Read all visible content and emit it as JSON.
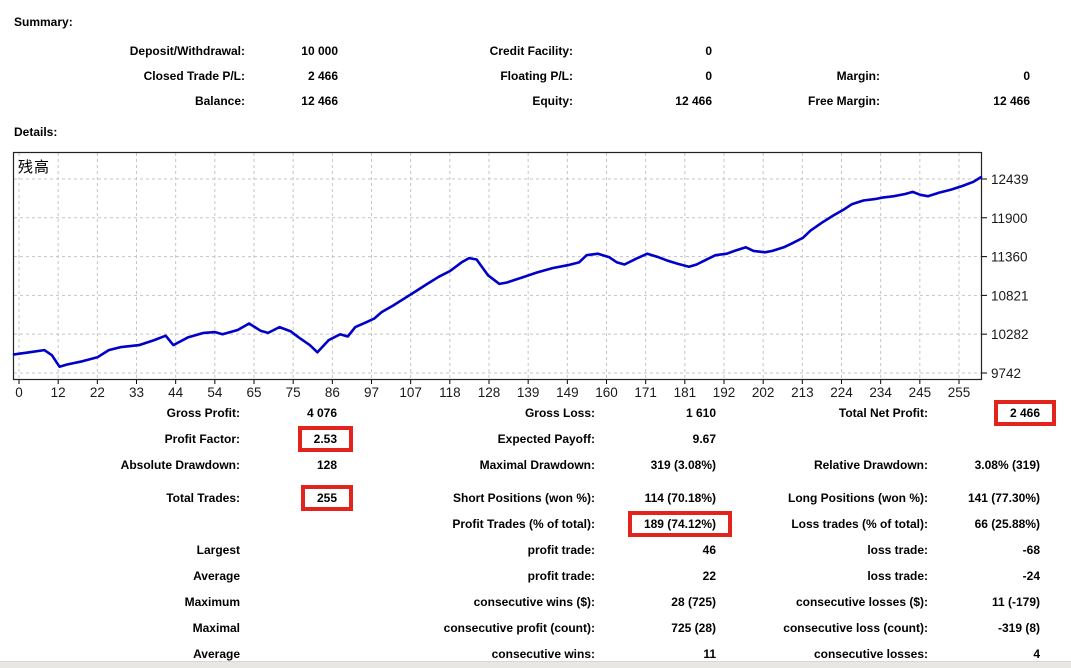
{
  "colors": {
    "highlight_red": "#e3241d",
    "balance_line_blue": "#0000c8",
    "grid_gray": "#c4c4c4",
    "axis_text": "#1a1a1a"
  },
  "summary": {
    "heading": "Summary:",
    "rows": [
      [
        "Deposit/Withdrawal:",
        "10 000",
        "Credit Facility:",
        "0",
        "",
        ""
      ],
      [
        "Closed Trade P/L:",
        "2 466",
        "Floating P/L:",
        "0",
        "Margin:",
        "0"
      ],
      [
        "Balance:",
        "12 466",
        "Equity:",
        "12 466",
        "Free Margin:",
        "12 466"
      ]
    ]
  },
  "details": {
    "heading": "Details:",
    "rows": [
      [
        "Gross Profit:",
        "4 076",
        "Gross Loss:",
        "1 610",
        "Total Net Profit:",
        {
          "text": "2 466",
          "highlighted": true
        }
      ],
      [
        "Profit Factor:",
        {
          "text": "2.53",
          "highlighted": true
        },
        "Expected Payoff:",
        "9.67",
        "",
        ""
      ],
      [
        "Absolute Drawdown:",
        "128",
        "Maximal Drawdown:",
        "319 (3.08%)",
        "Relative Drawdown:",
        "3.08% (319)"
      ],
      {
        "spacer": true
      },
      [
        "Total Trades:",
        {
          "text": "255",
          "highlighted": true
        },
        "Short Positions (won %):",
        "114 (70.18%)",
        "Long Positions (won %):",
        "141 (77.30%)"
      ],
      [
        "",
        "",
        "Profit Trades (% of total):",
        {
          "text": "189 (74.12%)",
          "highlighted": true
        },
        "Loss trades (% of total):",
        "66 (25.88%)"
      ],
      [
        "Largest",
        "",
        "profit trade:",
        "46",
        "loss trade:",
        "-68"
      ],
      [
        "Average",
        "",
        "profit trade:",
        "22",
        "loss trade:",
        "-24"
      ],
      [
        "Maximum",
        "",
        "consecutive wins ($):",
        "28 (725)",
        "consecutive losses ($):",
        "11 (-179)"
      ],
      [
        "Maximal",
        "",
        "consecutive profit (count):",
        "725 (28)",
        "consecutive loss (count):",
        "-319 (8)"
      ],
      [
        "Average",
        "",
        "consecutive wins:",
        "11",
        "consecutive losses:",
        "4"
      ]
    ]
  },
  "chart_data": {
    "type": "line",
    "title": "残高",
    "xlabel": "",
    "ylabel": "",
    "xlim": [
      0,
      255
    ],
    "ylim": [
      9670,
      12540
    ],
    "grid": true,
    "legend_position": "none",
    "xticks": [
      0,
      12,
      22,
      33,
      44,
      54,
      65,
      75,
      86,
      97,
      107,
      118,
      128,
      139,
      149,
      160,
      171,
      181,
      192,
      202,
      213,
      224,
      234,
      245,
      255
    ],
    "yticks": [
      9742,
      10282,
      10821,
      11360,
      11900,
      12439
    ],
    "series": [
      {
        "name": "残高 (Balance)",
        "color": "#0000c8",
        "points": [
          [
            0,
            10000
          ],
          [
            4,
            10030
          ],
          [
            8,
            10060
          ],
          [
            10,
            9990
          ],
          [
            12,
            9830
          ],
          [
            14,
            9860
          ],
          [
            18,
            9905
          ],
          [
            22,
            9960
          ],
          [
            25,
            10060
          ],
          [
            28,
            10100
          ],
          [
            33,
            10130
          ],
          [
            37,
            10200
          ],
          [
            40,
            10260
          ],
          [
            42,
            10130
          ],
          [
            46,
            10240
          ],
          [
            50,
            10300
          ],
          [
            53,
            10310
          ],
          [
            55,
            10280
          ],
          [
            59,
            10340
          ],
          [
            62,
            10430
          ],
          [
            65,
            10330
          ],
          [
            67,
            10300
          ],
          [
            70,
            10380
          ],
          [
            73,
            10320
          ],
          [
            75,
            10240
          ],
          [
            78,
            10130
          ],
          [
            80,
            10030
          ],
          [
            83,
            10200
          ],
          [
            86,
            10280
          ],
          [
            88,
            10250
          ],
          [
            90,
            10380
          ],
          [
            93,
            10450
          ],
          [
            95,
            10500
          ],
          [
            97,
            10590
          ],
          [
            100,
            10680
          ],
          [
            103,
            10780
          ],
          [
            106,
            10880
          ],
          [
            109,
            10980
          ],
          [
            112,
            11080
          ],
          [
            115,
            11160
          ],
          [
            118,
            11280
          ],
          [
            120,
            11340
          ],
          [
            122,
            11320
          ],
          [
            125,
            11100
          ],
          [
            128,
            10980
          ],
          [
            130,
            11000
          ],
          [
            134,
            11070
          ],
          [
            138,
            11140
          ],
          [
            142,
            11200
          ],
          [
            146,
            11240
          ],
          [
            149,
            11280
          ],
          [
            151,
            11380
          ],
          [
            154,
            11400
          ],
          [
            157,
            11350
          ],
          [
            159,
            11280
          ],
          [
            161,
            11250
          ],
          [
            164,
            11330
          ],
          [
            167,
            11400
          ],
          [
            170,
            11350
          ],
          [
            172,
            11310
          ],
          [
            175,
            11260
          ],
          [
            178,
            11220
          ],
          [
            180,
            11250
          ],
          [
            183,
            11330
          ],
          [
            185,
            11380
          ],
          [
            188,
            11400
          ],
          [
            190,
            11440
          ],
          [
            193,
            11490
          ],
          [
            195,
            11440
          ],
          [
            198,
            11420
          ],
          [
            200,
            11440
          ],
          [
            203,
            11490
          ],
          [
            205,
            11540
          ],
          [
            208,
            11620
          ],
          [
            210,
            11720
          ],
          [
            213,
            11830
          ],
          [
            216,
            11930
          ],
          [
            219,
            12020
          ],
          [
            221,
            12090
          ],
          [
            224,
            12140
          ],
          [
            227,
            12160
          ],
          [
            229,
            12180
          ],
          [
            232,
            12200
          ],
          [
            235,
            12230
          ],
          [
            237,
            12260
          ],
          [
            239,
            12220
          ],
          [
            241,
            12200
          ],
          [
            244,
            12250
          ],
          [
            247,
            12290
          ],
          [
            250,
            12340
          ],
          [
            253,
            12400
          ],
          [
            255,
            12466
          ]
        ]
      }
    ]
  }
}
